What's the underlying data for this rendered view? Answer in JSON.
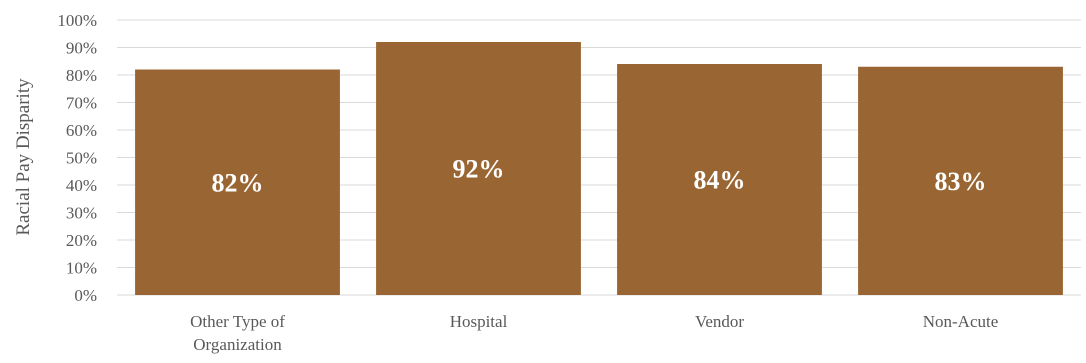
{
  "chart_data": {
    "type": "bar",
    "title": "",
    "xlabel": "",
    "ylabel": "Racial Pay Disparity",
    "categories": [
      [
        "Other Type of",
        "Organization"
      ],
      [
        "Hospital"
      ],
      [
        "Vendor"
      ],
      [
        "Non-Acute"
      ]
    ],
    "values": [
      82,
      92,
      84,
      83
    ],
    "data_labels": [
      "82%",
      "92%",
      "84%",
      "83%"
    ],
    "ylim": [
      0,
      100
    ],
    "yticks": [
      "0%",
      "10%",
      "20%",
      "30%",
      "40%",
      "50%",
      "60%",
      "70%",
      "80%",
      "90%",
      "100%"
    ],
    "grid": true,
    "legend": "none",
    "colors": {
      "bar": "#996633",
      "grid": "#d9d9d9",
      "text": "#595959"
    }
  }
}
